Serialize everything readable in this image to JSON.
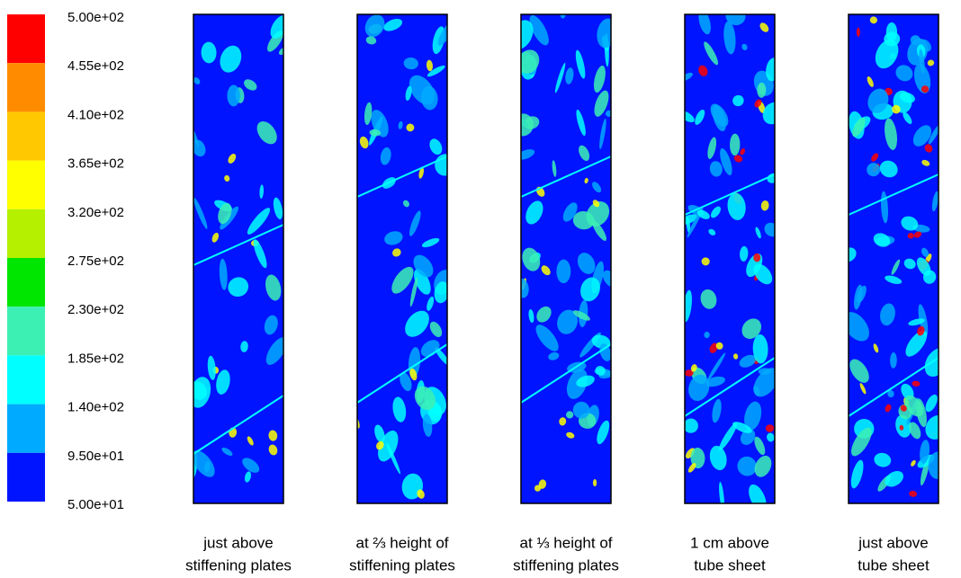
{
  "colorbar": {
    "levels": [
      {
        "value": 500,
        "label": "5.00e+02"
      },
      {
        "value": 455,
        "label": "4.55e+02"
      },
      {
        "value": 410,
        "label": "4.10e+02"
      },
      {
        "value": 365,
        "label": "3.65e+02"
      },
      {
        "value": 320,
        "label": "3.20e+02"
      },
      {
        "value": 275,
        "label": "2.75e+02"
      },
      {
        "value": 230,
        "label": "2.30e+02"
      },
      {
        "value": 185,
        "label": "1.85e+02"
      },
      {
        "value": 140,
        "label": "1.40e+02"
      },
      {
        "value": 95,
        "label": "9.50e+01"
      },
      {
        "value": 50,
        "label": "5.00e+01"
      }
    ],
    "colors": [
      "#ff0000",
      "#ff8c00",
      "#ffc800",
      "#ffff00",
      "#b4f000",
      "#00e600",
      "#3cf0b4",
      "#00ffff",
      "#00aaff",
      "#0014ff"
    ]
  },
  "panels": [
    {
      "caption": [
        "just above",
        "stiffening plates"
      ]
    },
    {
      "caption": [
        "at ⅔ height of",
        "stiffening plates"
      ]
    },
    {
      "caption": [
        "at ⅓ height of",
        "stiffening plates"
      ]
    },
    {
      "caption": [
        "1 cm above",
        "tube sheet"
      ]
    },
    {
      "caption": [
        "just above",
        "tube sheet"
      ]
    }
  ]
}
